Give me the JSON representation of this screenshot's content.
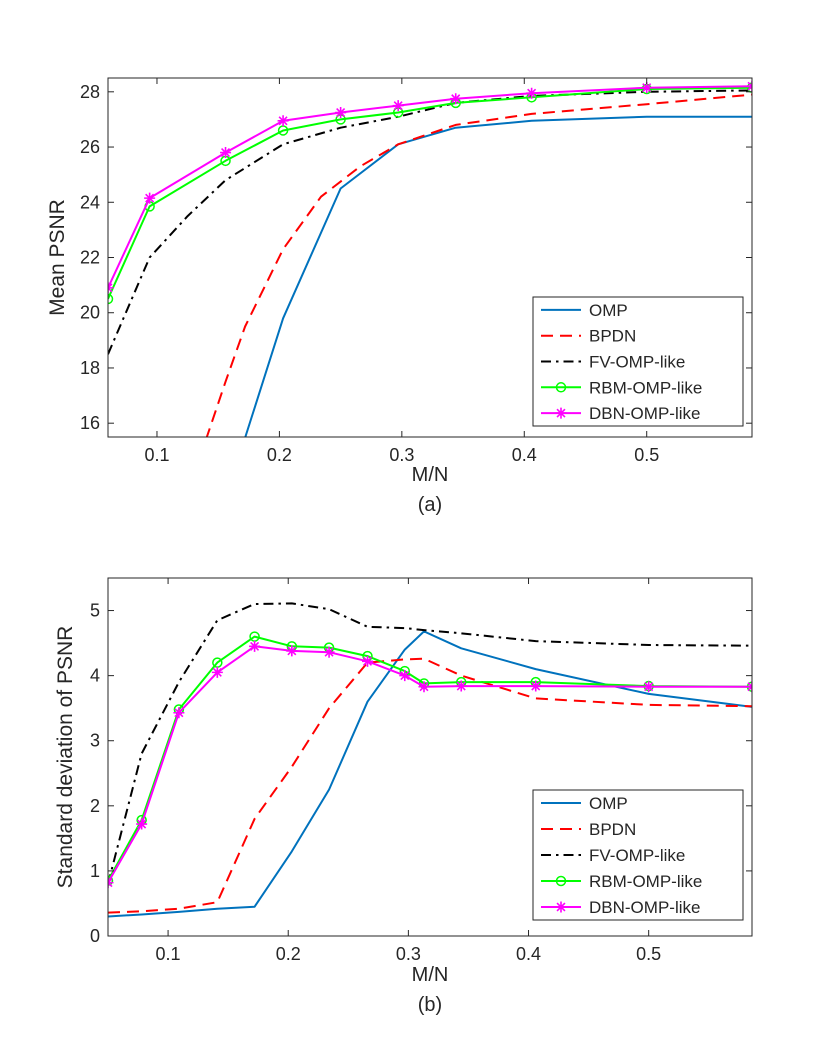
{
  "chart_data": [
    {
      "type": "line",
      "xlabel": "M/N",
      "ylabel": "Mean PSNR",
      "caption": "(a)",
      "xlim": [
        0.06,
        0.586
      ],
      "ylim": [
        15.5,
        28.5
      ],
      "xticks": [
        0.1,
        0.2,
        0.3,
        0.4,
        0.5
      ],
      "xtick_labels": [
        "0.1",
        "0.2",
        "0.3",
        "0.4",
        "0.5"
      ],
      "yticks": [
        16,
        18,
        20,
        22,
        24,
        26,
        28
      ],
      "ytick_labels": [
        "16",
        "18",
        "20",
        "22",
        "24",
        "26",
        "28"
      ],
      "grid": false,
      "legend_position": "bottom-right",
      "series": [
        {
          "name": "OMP",
          "color": "#0072BD",
          "dash": "solid",
          "marker": "none",
          "x": [
            0.17,
            0.203,
            0.25,
            0.297,
            0.344,
            0.406,
            0.5,
            0.586
          ],
          "y": [
            15.2,
            19.8,
            24.5,
            26.1,
            26.7,
            26.95,
            27.1,
            27.1
          ]
        },
        {
          "name": "BPDN",
          "color": "#FF0000",
          "dash": "dashed",
          "marker": "none",
          "x": [
            0.14,
            0.156,
            0.172,
            0.203,
            0.234,
            0.266,
            0.297,
            0.344,
            0.406,
            0.5,
            0.586
          ],
          "y": [
            15.4,
            17.5,
            19.5,
            22.3,
            24.2,
            25.3,
            26.1,
            26.8,
            27.2,
            27.55,
            27.9
          ]
        },
        {
          "name": "FV-OMP-like",
          "color": "#000000",
          "dash": "dashdot",
          "marker": "none",
          "x": [
            0.06,
            0.094,
            0.125,
            0.156,
            0.203,
            0.25,
            0.297,
            0.344,
            0.406,
            0.5,
            0.586
          ],
          "y": [
            18.5,
            22.0,
            23.5,
            24.8,
            26.1,
            26.7,
            27.1,
            27.6,
            27.85,
            28.0,
            28.05
          ]
        },
        {
          "name": "RBM-OMP-like",
          "color": "#00FF00",
          "dash": "solid",
          "marker": "circle",
          "x": [
            0.06,
            0.094,
            0.156,
            0.203,
            0.25,
            0.297,
            0.344,
            0.406,
            0.5,
            0.586
          ],
          "y": [
            20.5,
            23.85,
            25.5,
            26.6,
            27.0,
            27.25,
            27.6,
            27.8,
            28.1,
            28.15
          ]
        },
        {
          "name": "DBN-OMP-like",
          "color": "#FF00FF",
          "dash": "solid",
          "marker": "star",
          "x": [
            0.06,
            0.094,
            0.156,
            0.203,
            0.25,
            0.297,
            0.344,
            0.406,
            0.5,
            0.586
          ],
          "y": [
            20.9,
            24.15,
            25.8,
            26.95,
            27.25,
            27.5,
            27.75,
            27.95,
            28.15,
            28.2
          ]
        }
      ]
    },
    {
      "type": "line",
      "xlabel": "M/N",
      "ylabel": "Standard deviation of PSNR",
      "caption": "(b)",
      "xlim": [
        0.05,
        0.586
      ],
      "ylim": [
        0,
        5.5
      ],
      "xticks": [
        0.1,
        0.2,
        0.3,
        0.4,
        0.5
      ],
      "xtick_labels": [
        "0.1",
        "0.2",
        "0.3",
        "0.4",
        "0.5"
      ],
      "yticks": [
        0,
        1,
        2,
        3,
        4,
        5
      ],
      "ytick_labels": [
        "0",
        "1",
        "2",
        "3",
        "4",
        "5"
      ],
      "grid": false,
      "legend_position": "bottom-right",
      "series": [
        {
          "name": "OMP",
          "color": "#0072BD",
          "dash": "solid",
          "marker": "none",
          "x": [
            0.05,
            0.078,
            0.109,
            0.141,
            0.172,
            0.203,
            0.234,
            0.266,
            0.297,
            0.313,
            0.344,
            0.406,
            0.5,
            0.586
          ],
          "y": [
            0.3,
            0.33,
            0.37,
            0.42,
            0.45,
            1.3,
            2.25,
            3.6,
            4.4,
            4.68,
            4.42,
            4.1,
            3.72,
            3.52
          ]
        },
        {
          "name": "BPDN",
          "color": "#FF0000",
          "dash": "dashed",
          "marker": "none",
          "x": [
            0.05,
            0.078,
            0.109,
            0.141,
            0.172,
            0.203,
            0.234,
            0.266,
            0.297,
            0.313,
            0.344,
            0.406,
            0.5,
            0.586
          ],
          "y": [
            0.36,
            0.38,
            0.42,
            0.52,
            1.8,
            2.6,
            3.5,
            4.2,
            4.25,
            4.26,
            4.0,
            3.65,
            3.55,
            3.53
          ]
        },
        {
          "name": "FV-OMP-like",
          "color": "#000000",
          "dash": "dashdot",
          "marker": "none",
          "x": [
            0.05,
            0.078,
            0.109,
            0.141,
            0.172,
            0.203,
            0.234,
            0.266,
            0.297,
            0.313,
            0.344,
            0.406,
            0.5,
            0.586
          ],
          "y": [
            0.8,
            2.8,
            3.9,
            4.85,
            5.1,
            5.11,
            5.02,
            4.75,
            4.73,
            4.7,
            4.65,
            4.53,
            4.47,
            4.46
          ]
        },
        {
          "name": "RBM-OMP-like",
          "color": "#00FF00",
          "dash": "solid",
          "marker": "circle",
          "x": [
            0.05,
            0.078,
            0.109,
            0.141,
            0.172,
            0.203,
            0.234,
            0.266,
            0.297,
            0.313,
            0.344,
            0.406,
            0.5,
            0.586
          ],
          "y": [
            0.85,
            1.78,
            3.48,
            4.2,
            4.6,
            4.45,
            4.43,
            4.3,
            4.07,
            3.88,
            3.9,
            3.9,
            3.84,
            3.83
          ]
        },
        {
          "name": "DBN-OMP-like",
          "color": "#FF00FF",
          "dash": "solid",
          "marker": "star",
          "x": [
            0.05,
            0.078,
            0.109,
            0.141,
            0.172,
            0.203,
            0.234,
            0.266,
            0.297,
            0.313,
            0.344,
            0.406,
            0.5,
            0.586
          ],
          "y": [
            0.82,
            1.72,
            3.43,
            4.05,
            4.45,
            4.38,
            4.36,
            4.22,
            4.0,
            3.83,
            3.84,
            3.84,
            3.83,
            3.83
          ]
        }
      ]
    }
  ]
}
